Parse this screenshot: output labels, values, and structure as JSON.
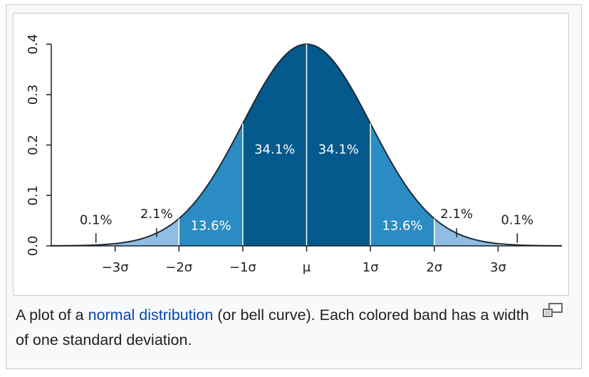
{
  "caption": {
    "prefix": "A plot of a ",
    "link_text": "normal distribution",
    "suffix": " (or bell curve). Each colored band has a width of one standard deviation.",
    "magnify_icon": "magnify-clip-icon"
  },
  "chart_data": {
    "type": "area",
    "title": "",
    "xlabel": "",
    "ylabel": "",
    "distribution": "standard normal",
    "xlim": [
      -4,
      4
    ],
    "ylim": [
      0,
      0.4
    ],
    "x_ticks": [
      {
        "value": -3,
        "label": "−3σ"
      },
      {
        "value": -2,
        "label": "−2σ"
      },
      {
        "value": -1,
        "label": "−1σ"
      },
      {
        "value": 0,
        "label": "μ"
      },
      {
        "value": 1,
        "label": "1σ"
      },
      {
        "value": 2,
        "label": "2σ"
      },
      {
        "value": 3,
        "label": "3σ"
      }
    ],
    "y_ticks": [
      {
        "value": 0.0,
        "label": "0.0"
      },
      {
        "value": 0.1,
        "label": "0.1"
      },
      {
        "value": 0.2,
        "label": "0.2"
      },
      {
        "value": 0.3,
        "label": "0.3"
      },
      {
        "value": 0.4,
        "label": "0.4"
      }
    ],
    "bands": [
      {
        "from": -4,
        "to": -3,
        "percent": "0.1%",
        "color": "#dbe9f6"
      },
      {
        "from": -3,
        "to": -2,
        "percent": "2.1%",
        "color": "#8fbde4"
      },
      {
        "from": -2,
        "to": -1,
        "percent": "13.6%",
        "color": "#2b8cc4"
      },
      {
        "from": -1,
        "to": 0,
        "percent": "34.1%",
        "color": "#045a8d"
      },
      {
        "from": 0,
        "to": 1,
        "percent": "34.1%",
        "color": "#045a8d"
      },
      {
        "from": 1,
        "to": 2,
        "percent": "13.6%",
        "color": "#2b8cc4"
      },
      {
        "from": 2,
        "to": 3,
        "percent": "2.1%",
        "color": "#8fbde4"
      },
      {
        "from": 3,
        "to": 4,
        "percent": "0.1%",
        "color": "#dbe9f6"
      }
    ],
    "colors": {
      "curve": "#1f2b3a",
      "divider": "#ffffff",
      "axis": "#202122",
      "link": "#0645ad"
    },
    "grid": false
  }
}
